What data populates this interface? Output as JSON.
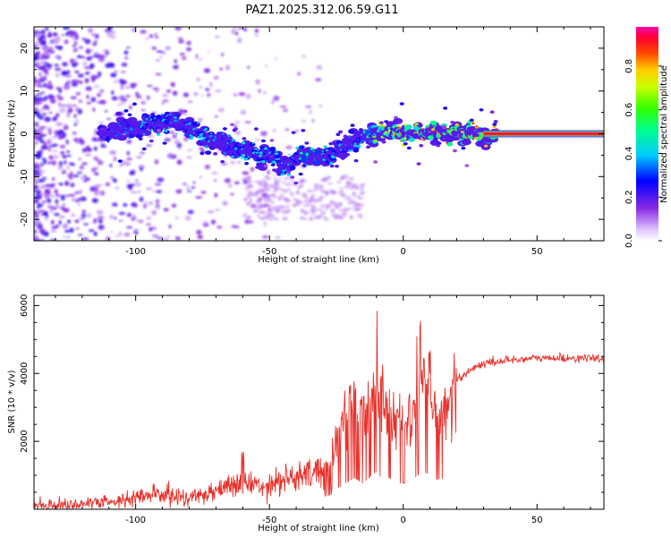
{
  "title": "PAZ1.2025.312.06.59.G11",
  "chart_data": [
    {
      "type": "heatmap",
      "xlabel": "Height of straight line (km)",
      "ylabel": "Frequency (Hz)",
      "xlim": [
        -138,
        75
      ],
      "ylim": [
        -25,
        25
      ],
      "x_ticks": [
        -100,
        -50,
        0,
        50
      ],
      "x_tick_labels": [
        "-100",
        "-50",
        "0",
        "50"
      ],
      "y_ticks": [
        -20,
        -10,
        0,
        10,
        20
      ],
      "y_tick_labels": [
        "-20",
        "-10",
        "0",
        "10",
        "20"
      ],
      "ridge": {
        "x": [
          -112,
          -105,
          -98,
          -92,
          -87,
          -82,
          -78,
          -73,
          -68,
          -63,
          -58,
          -53,
          -48,
          -44,
          -40,
          -35,
          -30,
          -27,
          -24,
          -20,
          -15,
          -10,
          -5,
          0,
          5,
          10,
          15,
          20,
          30,
          40,
          50,
          60,
          75
        ],
        "y": [
          0,
          1,
          1.5,
          2.5,
          3,
          2,
          0,
          -1,
          -2,
          -3.5,
          -4.5,
          -5,
          -5.5,
          -8,
          -5,
          -5.5,
          -5.5,
          -5,
          -3,
          -2,
          -0.5,
          0,
          0.3,
          0.5,
          0.3,
          0,
          0,
          0,
          0,
          0,
          0,
          0,
          0
        ],
        "normalized_amplitude": [
          0.3,
          0.4,
          0.45,
          0.5,
          0.45,
          0.4,
          0.5,
          0.45,
          0.4,
          0.45,
          0.5,
          0.5,
          0.5,
          0.45,
          0.5,
          0.6,
          0.55,
          0.5,
          0.45,
          0.45,
          0.5,
          0.75,
          0.85,
          0.9,
          0.8,
          0.95,
          0.95,
          0.95,
          0.95,
          0.95,
          0.95,
          0.95,
          0.95
        ]
      }
    },
    {
      "type": "line",
      "xlabel": "Height of straight line (km)",
      "ylabel": "SNR (10 * v/v)",
      "xlim": [
        -138,
        75
      ],
      "ylim": [
        0,
        6300
      ],
      "x_ticks": [
        -100,
        -50,
        0,
        50
      ],
      "x_tick_labels": [
        "-100",
        "-50",
        "0",
        "50"
      ],
      "y_ticks": [
        2000,
        4000,
        6000
      ],
      "y_tick_labels": [
        "2000",
        "4000",
        "6000"
      ],
      "color": "#e8302a",
      "series": [
        {
          "name": "SNR",
          "x": [
            -138,
            -120,
            -105,
            -100,
            -90,
            -80,
            -70,
            -60,
            -55,
            -50,
            -45,
            -40,
            -35,
            -30,
            -27,
            -25,
            -22,
            -20,
            -18,
            -15,
            -12,
            -10,
            -8,
            -5,
            -3,
            0,
            3,
            5,
            7,
            10,
            12,
            15,
            18,
            20,
            25,
            30,
            35,
            40,
            50,
            60,
            70,
            75
          ],
          "y": [
            120,
            150,
            250,
            350,
            450,
            300,
            600,
            800,
            700,
            750,
            900,
            900,
            1000,
            1200,
            1400,
            1900,
            2500,
            2800,
            3100,
            2500,
            3300,
            3700,
            3000,
            3100,
            2500,
            2600,
            2300,
            3300,
            3700,
            3400,
            2900,
            3000,
            3500,
            3800,
            4100,
            4300,
            4350,
            4400,
            4450,
            4450,
            4450,
            4400
          ]
        }
      ]
    }
  ]
}
